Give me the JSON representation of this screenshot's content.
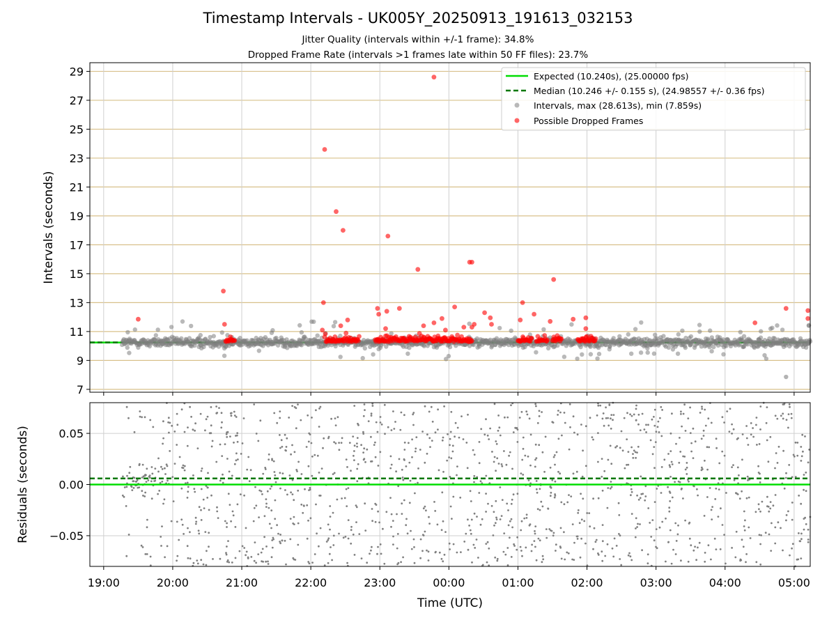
{
  "chart_data": [
    {
      "type": "scatter",
      "title": "Timestamp Intervals - UK005Y_20250913_191613_032153",
      "subtitle_1": "Jitter Quality (intervals within +/-1 frame): 34.8%",
      "subtitle_2": "Dropped Frame Rate (intervals >1 frames late within 50 FF files): 23.7%",
      "ylabel": "Intervals (seconds)",
      "ylim": [
        6.8,
        29.6
      ],
      "yticks": [
        "7",
        "9",
        "11",
        "13",
        "15",
        "17",
        "19",
        "21",
        "23",
        "25",
        "27",
        "29"
      ],
      "grid": "on",
      "legend_position": "top-right",
      "expected_line": {
        "label": "Expected (10.240s), (25.00000 fps)",
        "y": 10.24,
        "color": "#00dd00"
      },
      "median_line": {
        "label": "Median (10.246 +/- 0.155 s), (24.98557 +/- 0.36 fps)",
        "y": 10.246,
        "color": "#007700"
      },
      "intervals_series": {
        "label": "Intervals, max (28.613s), min (7.859s)",
        "color": "#808080",
        "max": 28.613,
        "min": 7.859,
        "x_start": "19:16",
        "x_end": "05:14"
      },
      "dropped_series": {
        "label": "Possible Dropped Frames",
        "color": "#ff0000",
        "points": [
          {
            "x": "19:30",
            "y": 11.85
          },
          {
            "x": "20:44",
            "y": 13.8
          },
          {
            "x": "20:45",
            "y": 11.5
          },
          {
            "x": "22:10",
            "y": 11.1
          },
          {
            "x": "22:11",
            "y": 13.0
          },
          {
            "x": "22:12",
            "y": 23.6
          },
          {
            "x": "22:22",
            "y": 19.3
          },
          {
            "x": "22:28",
            "y": 18.0
          },
          {
            "x": "22:32",
            "y": 11.8
          },
          {
            "x": "22:26",
            "y": 11.4
          },
          {
            "x": "22:58",
            "y": 12.6
          },
          {
            "x": "22:59",
            "y": 12.2
          },
          {
            "x": "23:05",
            "y": 11.2
          },
          {
            "x": "23:06",
            "y": 12.4
          },
          {
            "x": "23:07",
            "y": 17.6
          },
          {
            "x": "23:17",
            "y": 12.6
          },
          {
            "x": "23:33",
            "y": 15.3
          },
          {
            "x": "23:38",
            "y": 11.4
          },
          {
            "x": "23:47",
            "y": 11.6
          },
          {
            "x": "23:47",
            "y": 28.6
          },
          {
            "x": "23:54",
            "y": 11.9
          },
          {
            "x": "23:57",
            "y": 11.1
          },
          {
            "x": "00:05",
            "y": 12.7
          },
          {
            "x": "00:13",
            "y": 11.3
          },
          {
            "x": "00:18",
            "y": 15.8
          },
          {
            "x": "00:20",
            "y": 15.8
          },
          {
            "x": "00:20",
            "y": 11.3
          },
          {
            "x": "00:22",
            "y": 11.5
          },
          {
            "x": "00:31",
            "y": 12.3
          },
          {
            "x": "00:36",
            "y": 11.95
          },
          {
            "x": "00:37",
            "y": 11.5
          },
          {
            "x": "01:02",
            "y": 11.8
          },
          {
            "x": "01:04",
            "y": 13.0
          },
          {
            "x": "01:14",
            "y": 12.2
          },
          {
            "x": "01:28",
            "y": 11.7
          },
          {
            "x": "01:31",
            "y": 14.6
          },
          {
            "x": "01:48",
            "y": 11.85
          },
          {
            "x": "01:59",
            "y": 11.95
          },
          {
            "x": "01:59",
            "y": 11.2
          },
          {
            "x": "04:26",
            "y": 11.6
          },
          {
            "x": "04:53",
            "y": 12.6
          },
          {
            "x": "05:12",
            "y": 12.45
          },
          {
            "x": "05:12",
            "y": 11.9
          }
        ],
        "clusters": [
          {
            "x_start": "20:46",
            "x_end": "20:54"
          },
          {
            "x_start": "22:12",
            "x_end": "22:42"
          },
          {
            "x_start": "22:56",
            "x_end": "00:20"
          },
          {
            "x_start": "01:00",
            "x_end": "01:12"
          },
          {
            "x_start": "01:16",
            "x_end": "01:26"
          },
          {
            "x_start": "01:30",
            "x_end": "01:38"
          },
          {
            "x_start": "01:52",
            "x_end": "02:08"
          }
        ]
      }
    },
    {
      "type": "scatter",
      "ylabel": "Residuals (seconds)",
      "xlabel": "Time (UTC)",
      "ylim": [
        -0.08,
        0.08
      ],
      "yticks": [
        "−0.05",
        "0.00",
        "0.05"
      ],
      "ytick_values": [
        -0.05,
        0.0,
        0.05
      ],
      "xticks": [
        "19:00",
        "20:00",
        "21:00",
        "22:00",
        "23:00",
        "00:00",
        "01:00",
        "02:00",
        "03:00",
        "04:00",
        "05:00"
      ],
      "x_range": [
        "18:48",
        "05:14"
      ],
      "grid": "on",
      "expected_residual": 0.0,
      "median_residual": 0.006,
      "point_color": "#808080"
    }
  ]
}
